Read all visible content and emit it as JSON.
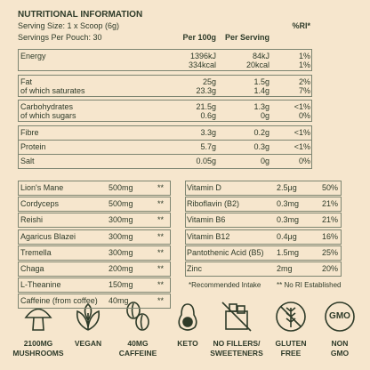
{
  "header": {
    "title": "NUTRITIONAL INFORMATION",
    "serving_size": "Serving Size: 1 x Scoop (6g)",
    "servings_per_pouch": "Servings Per Pouch: 30"
  },
  "nutrition_table": {
    "columns": [
      "Per 100g",
      "Per Serving",
      "%RI*"
    ],
    "rows": [
      {
        "labels": [
          "Energy"
        ],
        "per_100g": [
          "1396kJ",
          "334kcal"
        ],
        "per_serving": [
          "84kJ",
          "20kcal"
        ],
        "ri": [
          "1%",
          "1%"
        ]
      },
      {
        "labels": [
          "Fat",
          "of which saturates"
        ],
        "per_100g": [
          "25g",
          "23.3g"
        ],
        "per_serving": [
          "1.5g",
          "1.4g"
        ],
        "ri": [
          "2%",
          "7%"
        ]
      },
      {
        "labels": [
          "Carbohydrates",
          "of which sugars"
        ],
        "per_100g": [
          "21.5g",
          "0.6g"
        ],
        "per_serving": [
          "1.3g",
          "0g"
        ],
        "ri": [
          "<1%",
          "0%"
        ]
      },
      {
        "labels": [
          "Fibre"
        ],
        "per_100g": [
          "3.3g"
        ],
        "per_serving": [
          "0.2g"
        ],
        "ri": [
          "<1%"
        ]
      },
      {
        "labels": [
          "Protein"
        ],
        "per_100g": [
          "5.7g"
        ],
        "per_serving": [
          "0.3g"
        ],
        "ri": [
          "<1%"
        ]
      },
      {
        "labels": [
          "Salt"
        ],
        "per_100g": [
          "0.05g"
        ],
        "per_serving": [
          "0g"
        ],
        "ri": [
          "0%"
        ]
      }
    ]
  },
  "ingredients": {
    "rows": [
      [
        "Lion's Mane",
        "500mg",
        "**"
      ],
      [
        "Cordyceps",
        "500mg",
        "**"
      ],
      [
        "Reishi",
        "300mg",
        "**"
      ],
      [
        "Agaricus Blazei",
        "300mg",
        "**"
      ],
      [
        "Tremella",
        "300mg",
        "**"
      ],
      [
        "Chaga",
        "200mg",
        "**"
      ],
      [
        "L-Theanine",
        "150mg",
        "**"
      ],
      [
        "Caffeine (from coffee)",
        "40mg",
        "**"
      ]
    ]
  },
  "vitamins": {
    "rows": [
      [
        "Vitamin D",
        "2.5μg",
        "50%"
      ],
      [
        "Riboflavin (B2)",
        "0.3mg",
        "21%"
      ],
      [
        "Vitamin B6",
        "0.3mg",
        "21%"
      ],
      [
        "Vitamin B12",
        "0.4μg",
        "16%"
      ],
      [
        "Pantothenic Acid (B5)",
        "1.5mg",
        "25%"
      ],
      [
        "Zinc",
        "2mg",
        "20%"
      ]
    ],
    "footnotes": [
      "*Recommended Intake",
      "** No RI Established"
    ]
  },
  "badges": [
    {
      "lines": [
        "2100MG",
        "MUSHROOMS"
      ]
    },
    {
      "lines": [
        "VEGAN"
      ]
    },
    {
      "lines": [
        "40MG",
        "CAFFEINE"
      ]
    },
    {
      "lines": [
        "KETO"
      ]
    },
    {
      "lines": [
        "NO FILLERS/",
        "SWEETENERS"
      ]
    },
    {
      "lines": [
        "GLUTEN",
        "FREE"
      ]
    },
    {
      "icon_text": "GMO",
      "lines": [
        "NON",
        "GMO"
      ]
    }
  ]
}
